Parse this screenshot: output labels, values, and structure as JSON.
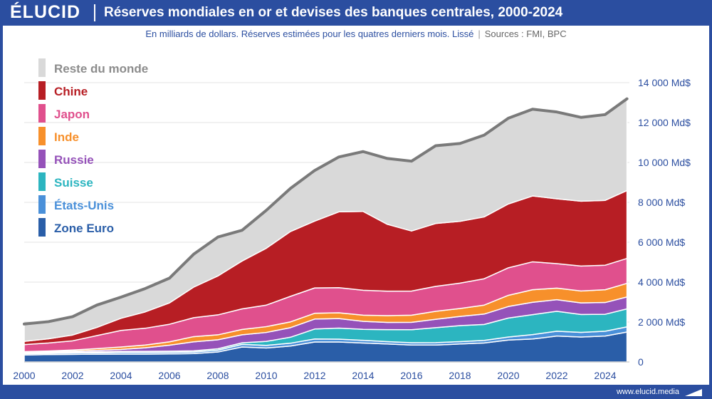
{
  "header": {
    "logo": "ÉLUCID",
    "title": "Réserves mondiales en or et devises des banques centrales, 2000-2024"
  },
  "subtitle": {
    "text": "En milliards de dollars. Réserves estimées pour les quatres derniers mois. Lissé",
    "separator": "|",
    "sources": "Sources : FMI, BPC"
  },
  "footer": {
    "url": "www.elucid.media"
  },
  "chart_data": {
    "type": "area",
    "stacked": true,
    "title": "Réserves mondiales en or et devises des banques centrales, 2000-2024",
    "unit": "Md$",
    "x": [
      2000,
      2001,
      2002,
      2003,
      2004,
      2005,
      2006,
      2007,
      2008,
      2009,
      2010,
      2011,
      2012,
      2013,
      2014,
      2015,
      2016,
      2017,
      2018,
      2019,
      2020,
      2021,
      2022,
      2023,
      2024,
      2024.9
    ],
    "xlim": [
      2000,
      2025
    ],
    "ylim": [
      0,
      15000
    ],
    "x_ticks": [
      2000,
      2002,
      2004,
      2006,
      2008,
      2010,
      2012,
      2014,
      2016,
      2018,
      2020,
      2022,
      2024
    ],
    "x_tick_labels": [
      "2000",
      "2002",
      "2004",
      "2006",
      "2008",
      "2010",
      "2012",
      "2014",
      "2016",
      "2018",
      "2020",
      "2022",
      "2024"
    ],
    "y_ticks": [
      0,
      2000,
      4000,
      6000,
      8000,
      10000,
      12000,
      14000
    ],
    "y_tick_labels": [
      "0",
      "2 000 Md$",
      "4 000 Md$",
      "6 000 Md$",
      "8 000 Md$",
      "10 000 Md$",
      "12 000 Md$",
      "14 000 Md$"
    ],
    "series": [
      {
        "name": "Zone Euro",
        "color": "#2a5ea8",
        "values": [
          350,
          370,
          380,
          390,
          395,
          395,
          400,
          420,
          500,
          750,
          700,
          800,
          1000,
          1000,
          950,
          900,
          850,
          850,
          900,
          950,
          1100,
          1150,
          1300,
          1250,
          1300,
          1500
        ]
      },
      {
        "name": "États-Unis",
        "color": "#4a90d9",
        "values": [
          60,
          60,
          70,
          70,
          80,
          80,
          80,
          80,
          90,
          130,
          130,
          140,
          150,
          145,
          135,
          120,
          115,
          120,
          120,
          130,
          150,
          220,
          240,
          230,
          240,
          260
        ]
      },
      {
        "name": "Suisse",
        "color": "#2cb5c0",
        "values": [
          40,
          40,
          40,
          50,
          55,
          55,
          60,
          60,
          70,
          80,
          200,
          300,
          500,
          550,
          550,
          600,
          650,
          750,
          800,
          800,
          950,
          1000,
          1000,
          900,
          850,
          900
        ]
      },
      {
        "name": "Russie",
        "color": "#9552b9",
        "values": [
          30,
          40,
          50,
          70,
          100,
          180,
          300,
          450,
          450,
          400,
          450,
          480,
          500,
          480,
          400,
          360,
          370,
          420,
          460,
          520,
          580,
          620,
          580,
          580,
          590,
          600
        ]
      },
      {
        "name": "Inde",
        "color": "#f7902b",
        "values": [
          40,
          40,
          60,
          90,
          120,
          140,
          170,
          260,
          250,
          270,
          290,
          290,
          290,
          290,
          310,
          340,
          360,
          400,
          400,
          450,
          560,
          630,
          580,
          600,
          640,
          680
        ]
      },
      {
        "name": "Japon",
        "color": "#e0508d",
        "values": [
          350,
          400,
          460,
          650,
          830,
          840,
          880,
          950,
          1000,
          1030,
          1080,
          1280,
          1270,
          1260,
          1250,
          1230,
          1210,
          1250,
          1270,
          1320,
          1380,
          1400,
          1230,
          1250,
          1230,
          1250
        ]
      },
      {
        "name": "Chine",
        "color": "#b71e24",
        "values": [
          160,
          210,
          290,
          410,
          610,
          820,
          1070,
          1530,
          1950,
          2400,
          2850,
          3250,
          3350,
          3800,
          3950,
          3350,
          3010,
          3150,
          3100,
          3100,
          3200,
          3300,
          3250,
          3250,
          3250,
          3400
        ]
      },
      {
        "name": "Reste du monde",
        "color": "#d9d9d9",
        "values": [
          870,
          860,
          920,
          1120,
          1060,
          1170,
          1240,
          1650,
          1950,
          1540,
          1900,
          2160,
          2540,
          2750,
          3000,
          3300,
          3500,
          3900,
          3900,
          4100,
          4300,
          4350,
          4350,
          4200,
          4300,
          4600
        ]
      }
    ],
    "legend": [
      "Reste du monde",
      "Chine",
      "Japon",
      "Inde",
      "Russie",
      "Suisse",
      "États-Unis",
      "Zone Euro"
    ],
    "legend_position": "top-left"
  }
}
